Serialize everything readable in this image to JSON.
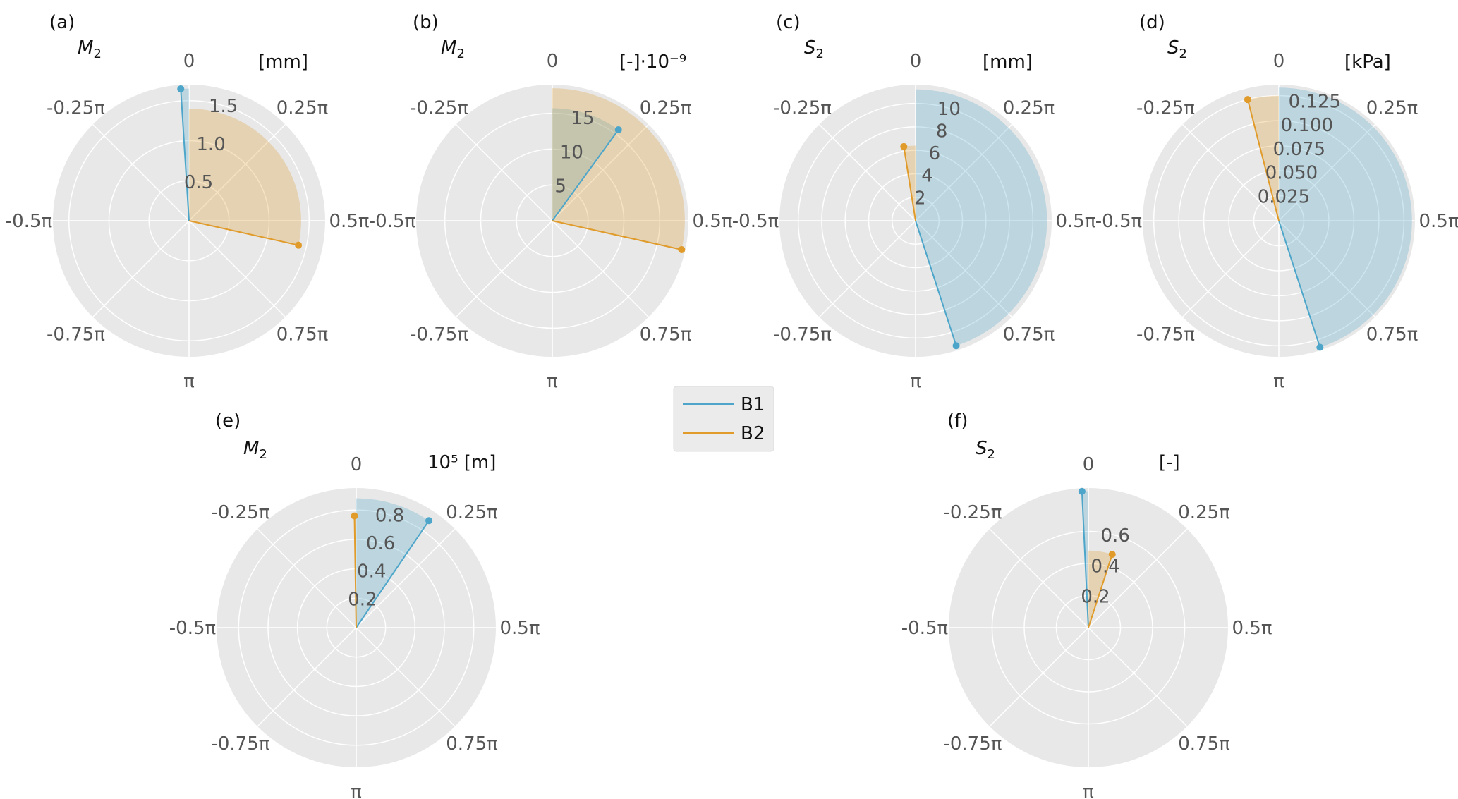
{
  "legend": [
    {
      "name": "B1",
      "color": "#4da6c9"
    },
    {
      "name": "B2",
      "color": "#e09b2a"
    }
  ],
  "chart_data": [
    {
      "type": "polar",
      "panel": "(a)",
      "variable": {
        "base": "M",
        "sub": "2"
      },
      "unit": "[mm]",
      "angular_ticks": [
        "0",
        "0.25π",
        "0.5π",
        "0.75π",
        "π",
        "-0.75π",
        "-0.5π",
        "-0.25π"
      ],
      "radial_ticks": [
        {
          "value": 0.5,
          "label": "0.5"
        },
        {
          "value": 1.0,
          "label": "1.0"
        },
        {
          "value": 1.5,
          "label": "1.5"
        }
      ],
      "rlim": [
        0,
        1.7
      ],
      "series": [
        {
          "name": "B1",
          "theta_pi": -0.02,
          "r": 1.65
        },
        {
          "name": "B2",
          "theta_pi": 0.57,
          "r": 1.4
        }
      ]
    },
    {
      "type": "polar",
      "panel": "(b)",
      "variable": {
        "base": "M",
        "sub": "2"
      },
      "unit": "[-]·10⁻⁹",
      "angular_ticks": [
        "0",
        "0.25π",
        "0.5π",
        "0.75π",
        "π",
        "-0.75π",
        "-0.5π",
        "-0.25π"
      ],
      "radial_ticks": [
        {
          "value": 5,
          "label": "5"
        },
        {
          "value": 10,
          "label": "10"
        },
        {
          "value": 15,
          "label": "15"
        }
      ],
      "rlim": [
        0,
        19
      ],
      "series": [
        {
          "name": "B1",
          "theta_pi": 0.2,
          "r": 15.7
        },
        {
          "name": "B2",
          "theta_pi": 0.57,
          "r": 18.5
        }
      ]
    },
    {
      "type": "polar",
      "panel": "(c)",
      "variable": {
        "base": "S",
        "sub": "2"
      },
      "unit": "[mm]",
      "angular_ticks": [
        "0",
        "0.25π",
        "0.5π",
        "0.75π",
        "π",
        "-0.75π",
        "-0.5π",
        "-0.25π"
      ],
      "radial_ticks": [
        {
          "value": 2,
          "label": "2"
        },
        {
          "value": 4,
          "label": "4"
        },
        {
          "value": 6,
          "label": "6"
        },
        {
          "value": 8,
          "label": "8"
        },
        {
          "value": 10,
          "label": "10"
        }
      ],
      "rlim": [
        0,
        11.6
      ],
      "series": [
        {
          "name": "B1",
          "theta_pi": 0.9,
          "r": 11.2
        },
        {
          "name": "B2",
          "theta_pi": -0.05,
          "r": 6.4
        }
      ]
    },
    {
      "type": "polar",
      "panel": "(d)",
      "variable": {
        "base": "S",
        "sub": "2"
      },
      "unit": "[kPa]",
      "angular_ticks": [
        "0",
        "0.25π",
        "0.5π",
        "0.75π",
        "π",
        "-0.75π",
        "-0.5π",
        "-0.25π"
      ],
      "radial_ticks": [
        {
          "value": 0.025,
          "label": "0.025"
        },
        {
          "value": 0.05,
          "label": "0.050"
        },
        {
          "value": 0.075,
          "label": "0.075"
        },
        {
          "value": 0.1,
          "label": "0.100"
        },
        {
          "value": 0.125,
          "label": "0.125"
        }
      ],
      "rlim": [
        0,
        0.136
      ],
      "series": [
        {
          "name": "B1",
          "theta_pi": 0.9,
          "r": 0.133
        },
        {
          "name": "B2",
          "theta_pi": -0.08,
          "r": 0.125
        }
      ]
    },
    {
      "type": "polar",
      "panel": "(e)",
      "variable": {
        "base": "M",
        "sub": "2"
      },
      "unit": "10⁵ [m]",
      "angular_ticks": [
        "0",
        "0.25π",
        "0.5π",
        "0.75π",
        "π",
        "-0.75π",
        "-0.5π",
        "-0.25π"
      ],
      "radial_ticks": [
        {
          "value": 0.2,
          "label": "0.2"
        },
        {
          "value": 0.4,
          "label": "0.4"
        },
        {
          "value": 0.6,
          "label": "0.6"
        },
        {
          "value": 0.8,
          "label": "0.8"
        }
      ],
      "rlim": [
        0,
        0.95
      ],
      "series": [
        {
          "name": "B1",
          "theta_pi": 0.19,
          "r": 0.88
        },
        {
          "name": "B2",
          "theta_pi": -0.005,
          "r": 0.76
        }
      ]
    },
    {
      "type": "polar",
      "panel": "(f)",
      "variable": {
        "base": "S",
        "sub": "2"
      },
      "unit": "[-]",
      "angular_ticks": [
        "0",
        "0.25π",
        "0.5π",
        "0.75π",
        "π",
        "-0.75π",
        "-0.5π",
        "-0.25π"
      ],
      "radial_ticks": [
        {
          "value": 0.2,
          "label": "0.2"
        },
        {
          "value": 0.4,
          "label": "0.4"
        },
        {
          "value": 0.6,
          "label": "0.6"
        }
      ],
      "rlim": [
        0,
        0.87
      ],
      "series": [
        {
          "name": "B1",
          "theta_pi": -0.015,
          "r": 0.85
        },
        {
          "name": "B2",
          "theta_pi": 0.1,
          "r": 0.48
        }
      ]
    }
  ]
}
